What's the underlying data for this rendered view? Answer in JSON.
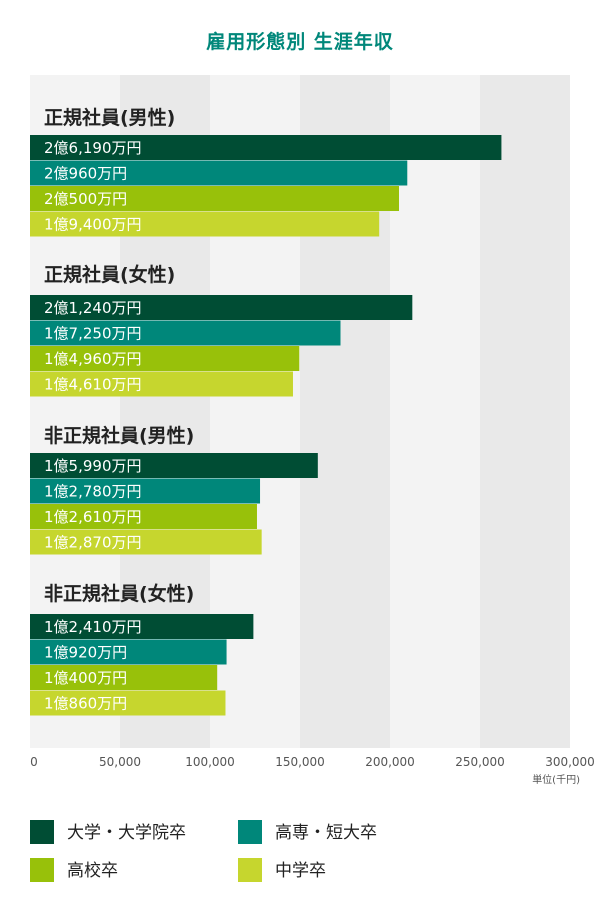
{
  "title": "雇用形態別 生涯年収",
  "unit_label": "単位(千円)",
  "colors": {
    "title": "#00877a",
    "band_light": "#f3f3f3",
    "band_dark": "#e9e9e9",
    "series": [
      "#004d34",
      "#00877a",
      "#98c10a",
      "#c6d62e"
    ]
  },
  "chart_data": {
    "type": "bar",
    "orientation": "horizontal",
    "title": "雇用形態別 生涯年収",
    "xlabel": "",
    "unit": "単位(千円)",
    "xlim": [
      0,
      300000
    ],
    "xticks": [
      "0",
      "50,000",
      "100,000",
      "150,000",
      "200,000",
      "250,000",
      "300,000"
    ],
    "grid": "alternating vertical bands",
    "legend_position": "bottom",
    "series_names": [
      "大学・大学院卒",
      "高専・短大卒",
      "高校卒",
      "中学卒"
    ],
    "groups": [
      {
        "name": "正規社員(男性)",
        "values": [
          261900,
          209600,
          205000,
          194000
        ],
        "labels": [
          "2億6,190万円",
          "2億960万円",
          "2億500万円",
          "1億9,400万円"
        ]
      },
      {
        "name": "正規社員(女性)",
        "values": [
          212400,
          172500,
          149600,
          146100
        ],
        "labels": [
          "2億1,240万円",
          "1億7,250万円",
          "1億4,960万円",
          "1億4,610万円"
        ]
      },
      {
        "name": "非正規社員(男性)",
        "values": [
          159900,
          127800,
          126100,
          128700
        ],
        "labels": [
          "1億5,990万円",
          "1億2,780万円",
          "1億2,610万円",
          "1億2,870万円"
        ]
      },
      {
        "name": "非正規社員(女性)",
        "values": [
          124100,
          109200,
          104000,
          108600
        ],
        "labels": [
          "1億2,410万円",
          "1億920万円",
          "1億400万円",
          "1億860万円"
        ]
      }
    ]
  }
}
